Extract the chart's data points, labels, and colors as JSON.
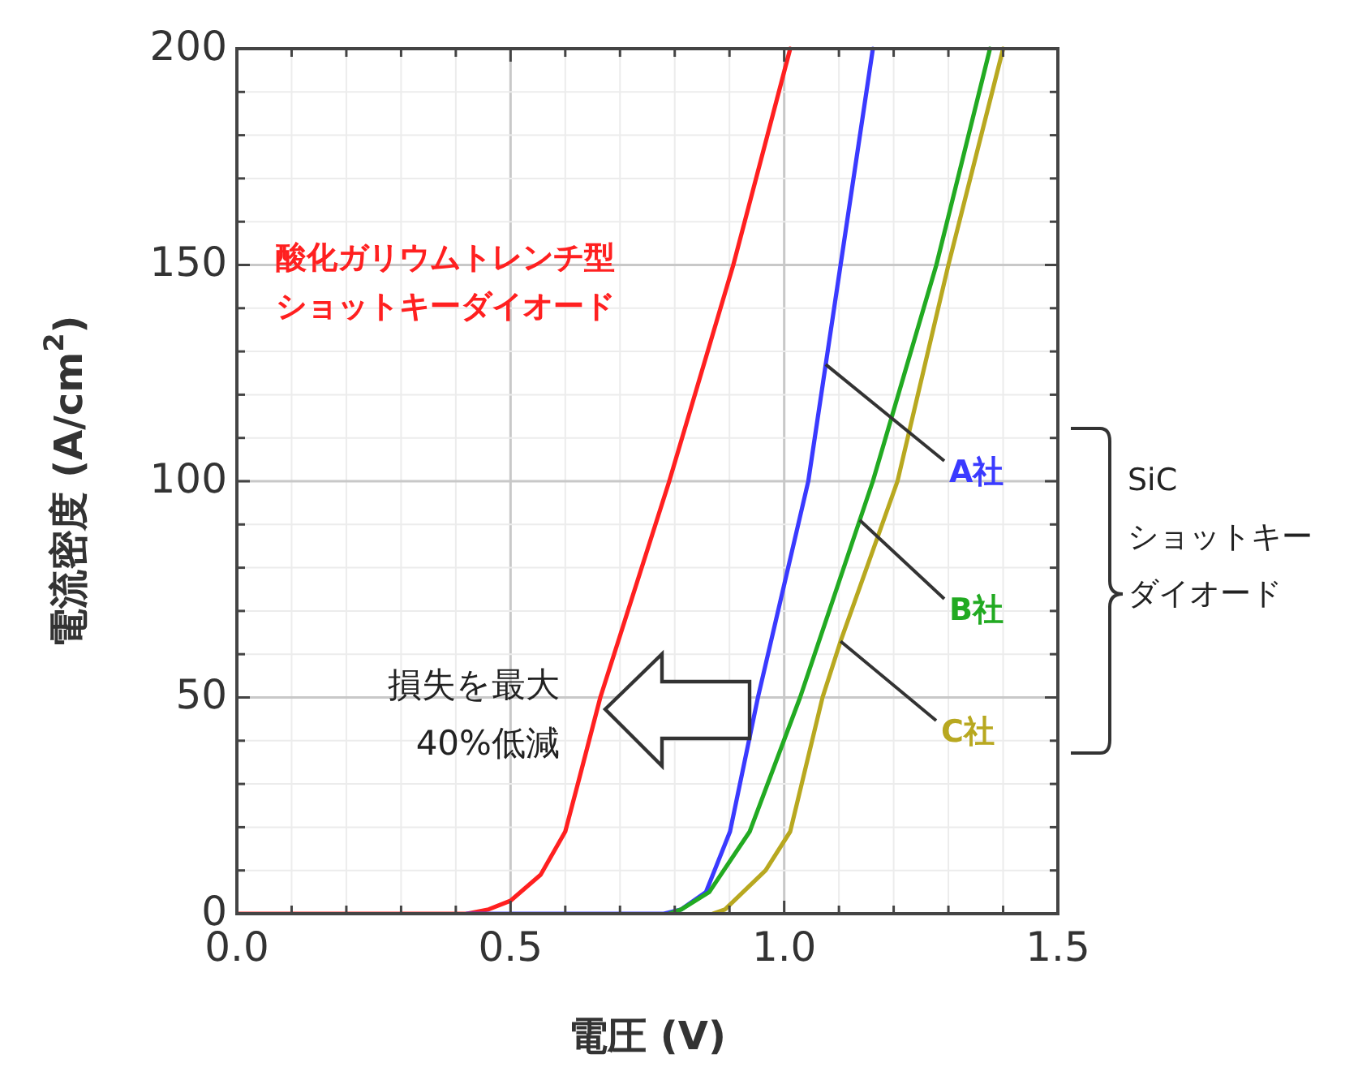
{
  "chart_data": {
    "type": "line",
    "xlabel": "電圧 (V)",
    "ylabel": "電流密度 (A/cm$^{2}$)",
    "xlim": [
      0,
      1.5
    ],
    "ylim": [
      0,
      200
    ],
    "xticks": [
      {
        "value": 0,
        "label": "0.0"
      },
      {
        "value": 0.1,
        "label": null
      },
      {
        "value": 0.2,
        "label": null
      },
      {
        "value": 0.3,
        "label": null
      },
      {
        "value": 0.4,
        "label": null
      },
      0.5,
      {
        "value": 0.6,
        "label": null
      },
      {
        "value": 0.7,
        "label": null
      },
      {
        "value": 0.8,
        "label": null
      },
      {
        "value": 0.9,
        "label": null
      },
      {
        "value": 1,
        "label": "1.0"
      },
      {
        "value": 1.1,
        "label": null
      },
      {
        "value": 1.2,
        "label": null
      },
      {
        "value": 1.3,
        "label": null
      },
      {
        "value": 1.4,
        "label": null
      },
      1.5
    ],
    "yticks": [
      0,
      {
        "value": 10,
        "label": null
      },
      {
        "value": 20,
        "label": null
      },
      {
        "value": 30,
        "label": null
      },
      {
        "value": 40,
        "label": null
      },
      50,
      {
        "value": 60,
        "label": null
      },
      {
        "value": 70,
        "label": null
      },
      {
        "value": 80,
        "label": null
      },
      {
        "value": 90,
        "label": null
      },
      100,
      {
        "value": 110,
        "label": null
      },
      {
        "value": 120,
        "label": null
      },
      {
        "value": 130,
        "label": null
      },
      {
        "value": 140,
        "label": null
      },
      150,
      {
        "value": 160,
        "label": null
      },
      {
        "value": 170,
        "label": null
      },
      {
        "value": 180,
        "label": null
      },
      {
        "value": 190,
        "label": null
      },
      200
    ],
    "grid": true,
    "series": [
      {
        "name": "酸化ガリウムトレンチ型ショットキーダイオード",
        "color": "#ff2020",
        "x": [
          0,
          0.42,
          0.46,
          0.5,
          0.555,
          0.6,
          0.625,
          0.664,
          0.79,
          0.907,
          1.011
        ],
        "values": [
          0,
          0,
          1,
          3,
          9,
          19,
          31,
          50,
          100,
          150,
          200
        ]
      },
      {
        "name": "A社",
        "color": "#3a3aff",
        "x": [
          0.42,
          0.78,
          0.812,
          0.857,
          0.901,
          0.952,
          1.044,
          1.103,
          1.162
        ],
        "values": [
          0,
          0,
          1,
          5,
          19,
          50,
          100,
          150,
          200
        ]
      },
      {
        "name": "B社",
        "color": "#22aa22",
        "x": [
          0.79,
          0.812,
          0.863,
          0.937,
          1.029,
          1.162,
          1.278,
          1.376
        ],
        "values": [
          0,
          1,
          5,
          19,
          50,
          100,
          150,
          200
        ]
      },
      {
        "name": "C社",
        "color": "#b8a820",
        "x": [
          0.87,
          0.892,
          0.966,
          1.011,
          1.07,
          1.103,
          1.207,
          1.3,
          1.4
        ],
        "values": [
          0,
          1,
          10,
          19,
          50,
          63,
          100,
          150,
          200
        ]
      }
    ],
    "annotations": [
      "損失を最大40%低減",
      "SiC ショットキーダイオード"
    ]
  }
}
